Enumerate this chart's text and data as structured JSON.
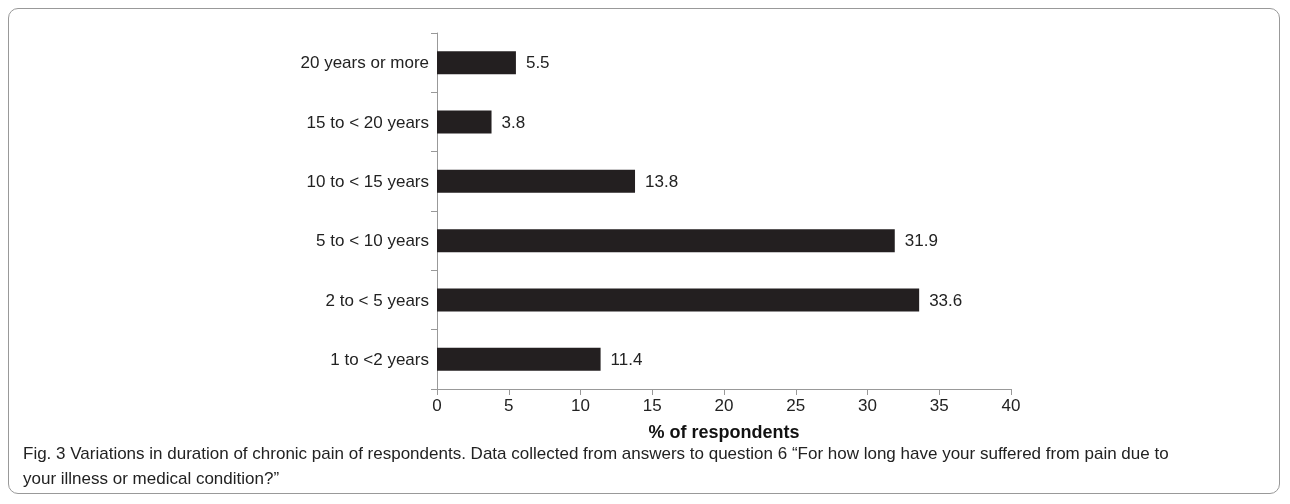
{
  "chart_data": {
    "type": "bar",
    "orientation": "horizontal",
    "categories": [
      "20 years or more",
      "15 to < 20 years",
      "10 to < 15 years",
      "5 to < 10 years",
      "2 to < 5 years",
      "1 to <2 years"
    ],
    "values": [
      5.5,
      3.8,
      13.8,
      31.9,
      33.6,
      11.4
    ],
    "color": "#231f20",
    "data_labels": true,
    "xlabel": "% of respondents",
    "xlim": [
      0,
      40
    ],
    "xticks": [
      0,
      5,
      10,
      15,
      20,
      25,
      30,
      35,
      40
    ],
    "grid": false,
    "annotations": [
      "Fig. 3 Variations in duration of chronic pain of respondents. Data collected from answers to question 6 “For how long have your suffered from pain due to your illness or medical condition?”"
    ]
  }
}
